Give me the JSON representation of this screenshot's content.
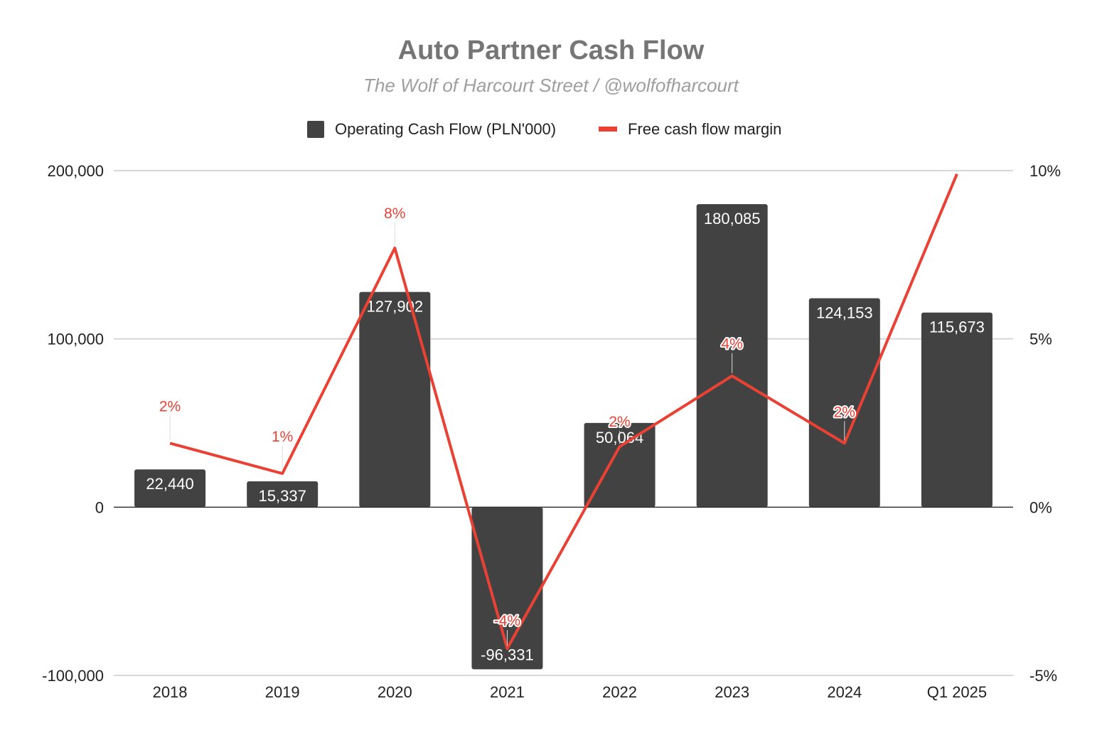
{
  "chart_data": {
    "type": "bar",
    "title": "Auto Partner Cash Flow",
    "subtitle": "The Wolf of Harcourt Street / @wolfofharcourt",
    "categories": [
      "2018",
      "2019",
      "2020",
      "2021",
      "2022",
      "2023",
      "2024",
      "Q1 2025"
    ],
    "series": [
      {
        "name": "Operating Cash Flow (PLN'000)",
        "type": "bar",
        "axis": "left",
        "color": "#424242",
        "values": [
          22440,
          15337,
          127902,
          -96331,
          50064,
          180085,
          124153,
          115673
        ],
        "labels": [
          "22,440",
          "15,337",
          "127,902",
          "-96,331",
          "50,064",
          "180,085",
          "124,153",
          "115,673"
        ]
      },
      {
        "name": "Free cash flow margin",
        "type": "line",
        "axis": "right",
        "color": "#e94235",
        "values": [
          1.9,
          1.0,
          7.7,
          -4.2,
          1.8,
          3.9,
          1.9,
          9.9
        ],
        "labels": [
          "2%",
          "1%",
          "8%",
          "-4%",
          "2%",
          "4%",
          "2%",
          ""
        ]
      }
    ],
    "y_left": {
      "min": -100000,
      "max": 200000,
      "ticks": [
        200000,
        100000,
        0,
        -100000
      ],
      "tick_labels": [
        "200,000",
        "100,000",
        "0",
        "-100,000"
      ]
    },
    "y_right": {
      "min": -5,
      "max": 10,
      "ticks": [
        10,
        5,
        0,
        -5
      ],
      "tick_labels": [
        "10%",
        "5%",
        "0%",
        "-5%"
      ]
    },
    "grid": true,
    "legend": "top-center"
  }
}
